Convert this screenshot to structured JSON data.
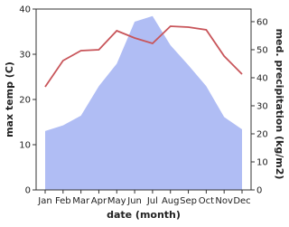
{
  "chart_data": {
    "type": "line-area",
    "x_label": "date (month)",
    "y_label": "max temp (C)",
    "y2_label": "med. precipitation (kg/m2)",
    "categories": [
      "Jan",
      "Feb",
      "Mar",
      "Apr",
      "May",
      "Jun",
      "Jul",
      "Aug",
      "Sep",
      "Oct",
      "Nov",
      "Dec"
    ],
    "series": [
      {
        "name": "max temp",
        "color": "#c8555a",
        "values": [
          22.8,
          28.6,
          30.8,
          31,
          35.2,
          33.6,
          32.4,
          36.2,
          36,
          35.4,
          29.6,
          25.6
        ]
      },
      {
        "name": "med. precipitation",
        "color": "#b0bdf4",
        "axis": "y2",
        "values": [
          21,
          23,
          26.5,
          37,
          45,
          60,
          62,
          51.6,
          44.5,
          37,
          26,
          21.6
        ]
      }
    ],
    "ylim": [
      0,
      40
    ],
    "yticks": [
      0,
      10,
      20,
      30,
      40
    ],
    "y2lim": [
      0,
      64.5
    ],
    "y2ticks": [
      0,
      10,
      20,
      30,
      40,
      50,
      60
    ]
  }
}
